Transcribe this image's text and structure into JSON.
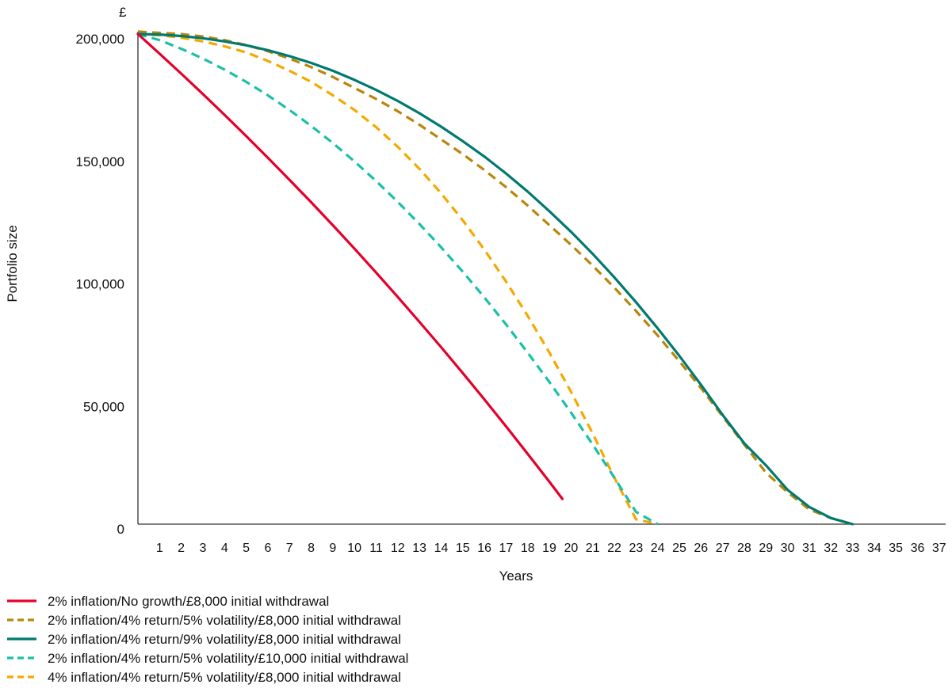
{
  "chart_data": {
    "type": "line",
    "title": "",
    "y_unit": "£",
    "xlabel": "Years",
    "ylabel": "Portfolio size",
    "x_ticks": [
      1,
      2,
      3,
      4,
      5,
      6,
      7,
      8,
      9,
      10,
      11,
      12,
      13,
      14,
      15,
      16,
      17,
      18,
      19,
      20,
      21,
      22,
      23,
      24,
      25,
      26,
      27,
      28,
      29,
      30,
      31,
      32,
      33,
      34,
      35,
      36,
      37
    ],
    "y_ticks": [
      0,
      50000,
      100000,
      150000,
      200000
    ],
    "y_tick_labels": [
      "0",
      "50,000",
      "100,000",
      "150,000",
      "200,000"
    ],
    "xlim": [
      0,
      37.3
    ],
    "ylim": [
      0,
      200000
    ],
    "grid": false,
    "legend_position": "bottom-left",
    "series": [
      {
        "name": "2% inflation/No growth/£8,000 initial withdrawal",
        "color": "#e4002b",
        "style": "solid",
        "x": [
          0,
          1,
          2,
          3,
          4,
          5,
          6,
          7,
          8,
          9,
          10,
          11,
          12,
          13,
          14,
          15,
          16,
          17,
          18,
          19,
          19.6
        ],
        "y": [
          200000,
          192000,
          183840,
          175517,
          167027,
          158368,
          149535,
          140526,
          131336,
          121963,
          112402,
          102650,
          92703,
          82557,
          72208,
          61652,
          50885,
          39903,
          28701,
          17275,
          10300
        ]
      },
      {
        "name": "2% inflation/4% return/5% volatility/£8,000 initial withdrawal",
        "color": "#b8860b",
        "style": "dashed",
        "x": [
          0,
          1,
          2,
          3,
          4,
          5,
          6,
          7,
          8,
          9,
          10,
          11,
          12,
          13,
          14,
          15,
          16,
          17,
          18,
          19,
          20,
          21,
          22,
          23,
          24,
          25,
          26,
          27,
          28,
          29,
          30,
          31,
          32,
          33,
          34
        ],
        "y": [
          201000,
          200500,
          200000,
          199000,
          197500,
          195500,
          193000,
          190000,
          186500,
          182500,
          178000,
          173500,
          168500,
          163000,
          157000,
          151000,
          144500,
          137500,
          130000,
          122000,
          114000,
          105500,
          96500,
          87000,
          77000,
          66500,
          55500,
          44000,
          32500,
          21000,
          13000,
          6000,
          2500,
          0,
          0
        ]
      },
      {
        "name": "2% inflation/4% return/9% volatility/£8,000 initial withdrawal",
        "color": "#007a6e",
        "style": "solid",
        "x": [
          0,
          1,
          2,
          3,
          4,
          5,
          6,
          7,
          8,
          9,
          10,
          11,
          12,
          13,
          14,
          15,
          16,
          17,
          18,
          19,
          20,
          21,
          22,
          23,
          24,
          25,
          26,
          27,
          28,
          29,
          30,
          31,
          32,
          33,
          34
        ],
        "y": [
          200000,
          199800,
          199200,
          198300,
          197000,
          195400,
          193400,
          191000,
          188200,
          185000,
          181300,
          177200,
          172700,
          167700,
          162200,
          156300,
          150000,
          143100,
          135700,
          127700,
          119300,
          110300,
          100700,
          90600,
          79900,
          68700,
          56900,
          44600,
          33000,
          24000,
          14000,
          7000,
          2500,
          0,
          0
        ]
      },
      {
        "name": "2% inflation/4% return/5% volatility/£10,000 initial withdrawal",
        "color": "#1bbfa8",
        "style": "dashed",
        "x": [
          0,
          1,
          2,
          3,
          4,
          5,
          6,
          7,
          8,
          9,
          10,
          11,
          12,
          13,
          14,
          15,
          16,
          17,
          18,
          19,
          20,
          21,
          22,
          23,
          24,
          25,
          25.8
        ],
        "y": [
          200000,
          197500,
          194000,
          190000,
          185500,
          180500,
          175000,
          169000,
          162500,
          155500,
          148000,
          140000,
          131500,
          122500,
          113000,
          103000,
          92500,
          81500,
          70000,
          58000,
          45500,
          32500,
          19000,
          5000,
          0,
          0,
          0
        ]
      },
      {
        "name": "4% inflation/4% return/5% volatility/£8,000 initial withdrawal",
        "color": "#f5a800",
        "style": "dashed",
        "x": [
          0,
          1,
          2,
          3,
          4,
          5,
          6,
          7,
          8,
          9,
          10,
          11,
          12,
          13,
          14,
          15,
          16,
          17,
          18,
          19,
          20,
          21,
          22,
          23,
          24,
          25,
          25.9
        ],
        "y": [
          200000,
          199500,
          198500,
          197000,
          195000,
          192500,
          189000,
          185000,
          180500,
          175000,
          169000,
          162000,
          154000,
          145000,
          135000,
          124000,
          112000,
          99000,
          85000,
          70000,
          54000,
          37000,
          19000,
          2000,
          0,
          0,
          0
        ]
      }
    ]
  }
}
